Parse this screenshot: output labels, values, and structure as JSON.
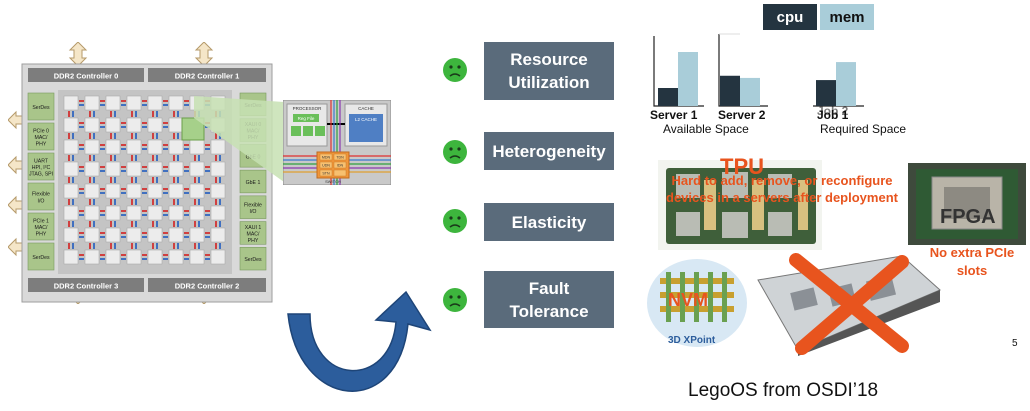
{
  "chip": {
    "top_controllers": [
      "DDR2 Controller 0",
      "DDR2 Controller 1"
    ],
    "bottom_controllers": [
      "DDR2 Controller 3",
      "DDR2 Controller 2"
    ],
    "left_blocks": [
      "SerDes",
      "PCIe 0\nMAC/\nPHY",
      "UART\nHPI, I²C\nJTAG, SPI",
      "Flexible\nI/O",
      "PCIe 1\nMAC/\nPHY",
      "SerDes"
    ],
    "right_blocks": [
      "SerDes",
      "XAUI 0\nMAC/\nPHY",
      "GbE 0",
      "GbE 1",
      "Flexible\nI/O",
      "XAUI 1\nMAC/\nPHY",
      "SerDes"
    ],
    "zoom_labels": {
      "processor": "PROCESSOR",
      "cache": "CACHE",
      "reg_file": "Reg File",
      "l2_cache": "L2 CACHE",
      "switch": "SWITCH",
      "switch_cells": [
        "MDN",
        "TDN",
        "UDN",
        "IDN",
        "STN",
        ""
      ]
    }
  },
  "problems": [
    {
      "label": "Resource\nUtilization"
    },
    {
      "label": "Heterogeneity"
    },
    {
      "label": "Elasticity"
    },
    {
      "label": "Fault\nTolerance"
    }
  ],
  "chart": {
    "legend": {
      "cpu": "cpu",
      "mem": "mem"
    },
    "colors": {
      "cpu": "#243440",
      "mem": "#a9cdd9"
    },
    "groups": [
      {
        "name": "Server 1",
        "cpu": 0.25,
        "mem": 0.75
      },
      {
        "name": "Server 2",
        "cpu": 0.42,
        "mem": 0.39
      },
      {
        "name": "Job 1",
        "cpu": 0.36,
        "mem": 0.61
      }
    ],
    "caption_left": "Available Space",
    "caption_right": "Required Space",
    "job_overlay": "Job 2"
  },
  "devices": {
    "tpu": "TPU",
    "tpu_note": "Hard to add, remove, or reconfigure devices in a servers after deployment",
    "fpga": "FPGA",
    "fpga_note": "No extra PCIe slots",
    "nvm": "NVM",
    "nvm_sub": "3D XPoint"
  },
  "page_number": "5",
  "footer": "LegoOS from OSDI’18",
  "colors": {
    "problem_box": "#5a6b7b",
    "face": "#3db53d",
    "accent": "#e8541e",
    "arrow": "#2c5d9c"
  }
}
